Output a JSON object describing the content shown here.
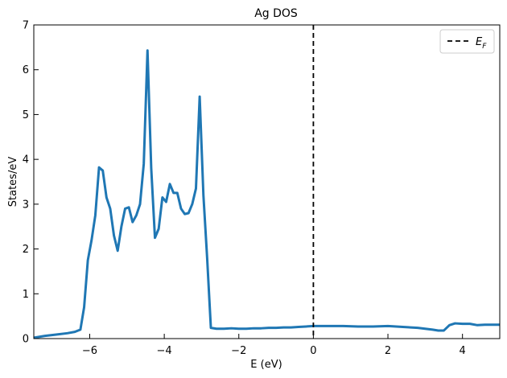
{
  "chart_data": {
    "type": "line",
    "title": "Ag DOS",
    "xlabel": "E (eV)",
    "ylabel": "States/eV",
    "xlim": [
      -7.5,
      5
    ],
    "ylim": [
      0,
      7
    ],
    "xticks": [
      -6,
      -4,
      -2,
      0,
      2,
      4
    ],
    "xtick_labels": [
      "−6",
      "−4",
      "−2",
      "0",
      "2",
      "4"
    ],
    "yticks": [
      0,
      1,
      2,
      3,
      4,
      5,
      6,
      7
    ],
    "ytick_labels": [
      "0",
      "1",
      "2",
      "3",
      "4",
      "5",
      "6",
      "7"
    ],
    "grid": false,
    "legend": {
      "placement": "top-right",
      "entries": [
        {
          "label": "E",
          "subscript": "F"
        }
      ]
    },
    "fermi_level": 0,
    "series": [
      {
        "color": "#1f77b4",
        "x": [
          -7.5,
          -7.2,
          -6.9,
          -6.6,
          -6.4,
          -6.25,
          -6.15,
          -6.05,
          -5.95,
          -5.85,
          -5.75,
          -5.65,
          -5.55,
          -5.45,
          -5.35,
          -5.25,
          -5.15,
          -5.05,
          -4.95,
          -4.85,
          -4.75,
          -4.65,
          -4.55,
          -4.45,
          -4.35,
          -4.25,
          -4.15,
          -4.05,
          -3.95,
          -3.85,
          -3.75,
          -3.65,
          -3.55,
          -3.45,
          -3.35,
          -3.25,
          -3.15,
          -3.05,
          -2.95,
          -2.85,
          -2.75,
          -2.6,
          -2.4,
          -2.2,
          -2.0,
          -1.8,
          -1.6,
          -1.4,
          -1.2,
          -1.0,
          -0.8,
          -0.6,
          -0.4,
          -0.2,
          0.0,
          0.4,
          0.8,
          1.2,
          1.6,
          2.0,
          2.4,
          2.8,
          3.0,
          3.2,
          3.35,
          3.5,
          3.65,
          3.8,
          4.0,
          4.2,
          4.4,
          4.6,
          4.8,
          5.0
        ],
        "y": [
          0.02,
          0.06,
          0.09,
          0.12,
          0.15,
          0.2,
          0.7,
          1.75,
          2.2,
          2.75,
          3.82,
          3.75,
          3.15,
          2.9,
          2.3,
          1.96,
          2.5,
          2.9,
          2.93,
          2.6,
          2.75,
          3.0,
          3.9,
          6.43,
          3.8,
          2.25,
          2.45,
          3.15,
          3.05,
          3.45,
          3.25,
          3.25,
          2.9,
          2.78,
          2.8,
          3.0,
          3.35,
          5.4,
          3.2,
          1.8,
          0.24,
          0.22,
          0.22,
          0.23,
          0.22,
          0.22,
          0.23,
          0.23,
          0.24,
          0.24,
          0.25,
          0.25,
          0.26,
          0.27,
          0.28,
          0.28,
          0.28,
          0.27,
          0.27,
          0.28,
          0.26,
          0.24,
          0.22,
          0.2,
          0.18,
          0.18,
          0.3,
          0.34,
          0.33,
          0.33,
          0.3,
          0.31,
          0.31,
          0.31
        ]
      }
    ]
  }
}
